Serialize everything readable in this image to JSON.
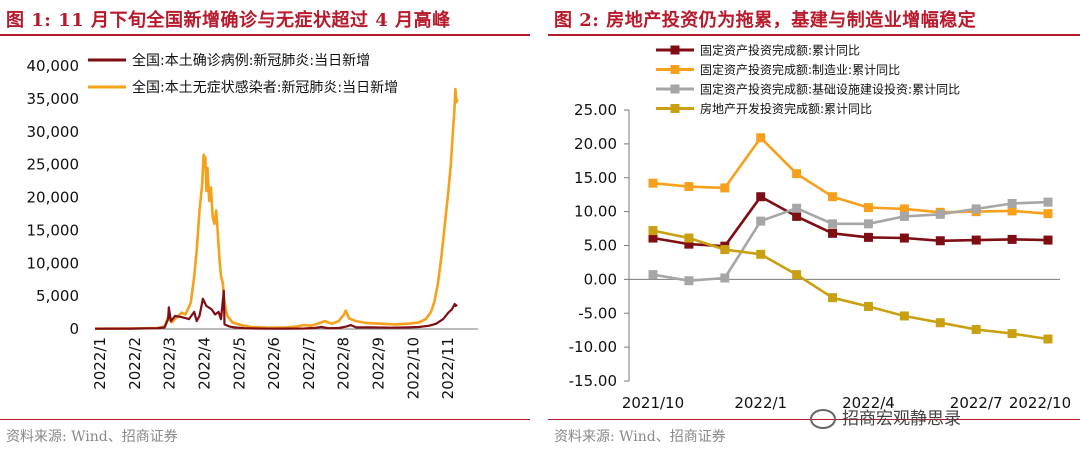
{
  "panel1": {
    "title": "图 1: 11 月下旬全国新增确诊与无症状超过 4 月高峰",
    "source": "资料来源: Wind、招商证券"
  },
  "panel2": {
    "title": "图 2: 房地产投资仍为拖累，基建与制造业增幅稳定",
    "source": "资料来源: Wind、招商证券"
  },
  "watermark": {
    "text": "招商宏观静思录",
    "icon": "wechat-icon"
  },
  "chart_data": [
    {
      "type": "line",
      "ylim": [
        0,
        40000
      ],
      "yticks": [
        "0",
        "5,000",
        "10,000",
        "15,000",
        "20,000",
        "25,000",
        "30,000",
        "35,000",
        "40,000"
      ],
      "xticks": [
        "2022/1",
        "2022/2",
        "2022/3",
        "2022/4",
        "2022/5",
        "2022/6",
        "2022/7",
        "2022/8",
        "2022/9",
        "2022/10",
        "2022/11"
      ],
      "x_domain": [
        0,
        11
      ],
      "series": [
        {
          "name": "全国:本土确诊病例:新冠肺炎:当日新增",
          "color": "#7f0e14",
          "points": [
            [
              0,
              50
            ],
            [
              1.0,
              60
            ],
            [
              1.8,
              120
            ],
            [
              2.0,
              250
            ],
            [
              2.1,
              1500
            ],
            [
              2.12,
              3300
            ],
            [
              2.18,
              1200
            ],
            [
              2.3,
              2000
            ],
            [
              2.5,
              1800
            ],
            [
              2.7,
              1500
            ],
            [
              2.85,
              2600
            ],
            [
              2.92,
              1200
            ],
            [
              3.0,
              2000
            ],
            [
              3.1,
              4600
            ],
            [
              3.2,
              3500
            ],
            [
              3.35,
              3000
            ],
            [
              3.45,
              2200
            ],
            [
              3.55,
              2600
            ],
            [
              3.62,
              1500
            ],
            [
              3.7,
              5800
            ],
            [
              3.72,
              700
            ],
            [
              3.85,
              400
            ],
            [
              4.0,
              250
            ],
            [
              4.3,
              120
            ],
            [
              4.6,
              80
            ],
            [
              5.0,
              50
            ],
            [
              5.5,
              60
            ],
            [
              6.0,
              80
            ],
            [
              6.3,
              150
            ],
            [
              6.5,
              300
            ],
            [
              6.7,
              120
            ],
            [
              7.0,
              150
            ],
            [
              7.2,
              350
            ],
            [
              7.35,
              600
            ],
            [
              7.5,
              250
            ],
            [
              8.0,
              250
            ],
            [
              8.5,
              200
            ],
            [
              9.0,
              250
            ],
            [
              9.3,
              300
            ],
            [
              9.6,
              500
            ],
            [
              9.8,
              800
            ],
            [
              10.0,
              1500
            ],
            [
              10.15,
              2500
            ],
            [
              10.25,
              3000
            ],
            [
              10.33,
              3800
            ],
            [
              10.36,
              3500
            ],
            [
              10.4,
              3700
            ]
          ]
        },
        {
          "name": "全国:本土无症状感染者:新冠肺炎:当日新增",
          "color": "#f7a01c",
          "points": [
            [
              0,
              50
            ],
            [
              1.0,
              60
            ],
            [
              1.8,
              150
            ],
            [
              2.0,
              400
            ],
            [
              2.1,
              1800
            ],
            [
              2.2,
              1000
            ],
            [
              2.35,
              1800
            ],
            [
              2.5,
              2500
            ],
            [
              2.6,
              2200
            ],
            [
              2.75,
              4000
            ],
            [
              2.85,
              8000
            ],
            [
              2.92,
              12000
            ],
            [
              3.0,
              18000
            ],
            [
              3.08,
              22000
            ],
            [
              3.12,
              26500
            ],
            [
              3.17,
              26000
            ],
            [
              3.2,
              21000
            ],
            [
              3.23,
              24500
            ],
            [
              3.28,
              19500
            ],
            [
              3.33,
              21500
            ],
            [
              3.38,
              17000
            ],
            [
              3.43,
              16000
            ],
            [
              3.48,
              18000
            ],
            [
              3.52,
              15000
            ],
            [
              3.57,
              11000
            ],
            [
              3.62,
              8000
            ],
            [
              3.67,
              7000
            ],
            [
              3.72,
              4000
            ],
            [
              3.8,
              2000
            ],
            [
              3.95,
              1000
            ],
            [
              4.2,
              600
            ],
            [
              4.5,
              300
            ],
            [
              5.0,
              200
            ],
            [
              5.5,
              250
            ],
            [
              5.8,
              400
            ],
            [
              6.0,
              600
            ],
            [
              6.2,
              500
            ],
            [
              6.4,
              800
            ],
            [
              6.6,
              1200
            ],
            [
              6.8,
              800
            ],
            [
              7.0,
              1200
            ],
            [
              7.15,
              2200
            ],
            [
              7.2,
              2800
            ],
            [
              7.3,
              1600
            ],
            [
              7.5,
              1200
            ],
            [
              7.8,
              900
            ],
            [
              8.2,
              800
            ],
            [
              8.6,
              700
            ],
            [
              9.0,
              800
            ],
            [
              9.3,
              1000
            ],
            [
              9.5,
              1500
            ],
            [
              9.65,
              2600
            ],
            [
              9.75,
              4200
            ],
            [
              9.85,
              7000
            ],
            [
              9.95,
              11000
            ],
            [
              10.05,
              16000
            ],
            [
              10.15,
              21000
            ],
            [
              10.22,
              25000
            ],
            [
              10.28,
              30000
            ],
            [
              10.32,
              33000
            ],
            [
              10.35,
              36500
            ],
            [
              10.38,
              34500
            ],
            [
              10.41,
              35000
            ]
          ]
        }
      ]
    },
    {
      "type": "line",
      "ylim": [
        -15,
        25
      ],
      "yticks": [
        "-15.00",
        "-10.00",
        "-5.00",
        "0.00",
        "5.00",
        "10.00",
        "15.00",
        "20.00",
        "25.00"
      ],
      "xticks": [
        "2021/10",
        "2022/1",
        "2022/4",
        "2022/7",
        "2022/10"
      ],
      "x_categories": [
        0,
        1,
        2,
        3,
        4,
        5,
        6,
        7,
        8,
        9,
        10,
        11,
        12
      ],
      "series": [
        {
          "name": "固定资产投资完成额:累计同比",
          "color": "#7f0e14",
          "values": [
            6.1,
            5.2,
            4.9,
            12.2,
            9.3,
            6.8,
            6.2,
            6.1,
            5.7,
            5.8,
            5.9,
            5.8
          ]
        },
        {
          "name": "固定资产投资完成额:制造业:累计同比",
          "color": "#f7a01c",
          "values": [
            14.2,
            13.7,
            13.5,
            20.9,
            15.6,
            12.2,
            10.6,
            10.4,
            9.9,
            10.0,
            10.1,
            9.7
          ]
        },
        {
          "name": "固定资产投资完成额:基础设施建设投资:累计同比",
          "color": "#a6a6a6",
          "values": [
            0.7,
            -0.2,
            0.2,
            8.6,
            10.5,
            8.2,
            8.2,
            9.3,
            9.6,
            10.4,
            11.2,
            11.4
          ]
        },
        {
          "name": "房地产开发投资完成额:累计同比",
          "color": "#c9a012",
          "values": [
            7.2,
            6.1,
            4.4,
            3.7,
            0.7,
            -2.7,
            -4.0,
            -5.4,
            -6.4,
            -7.4,
            -8.0,
            -8.8
          ]
        }
      ]
    }
  ]
}
